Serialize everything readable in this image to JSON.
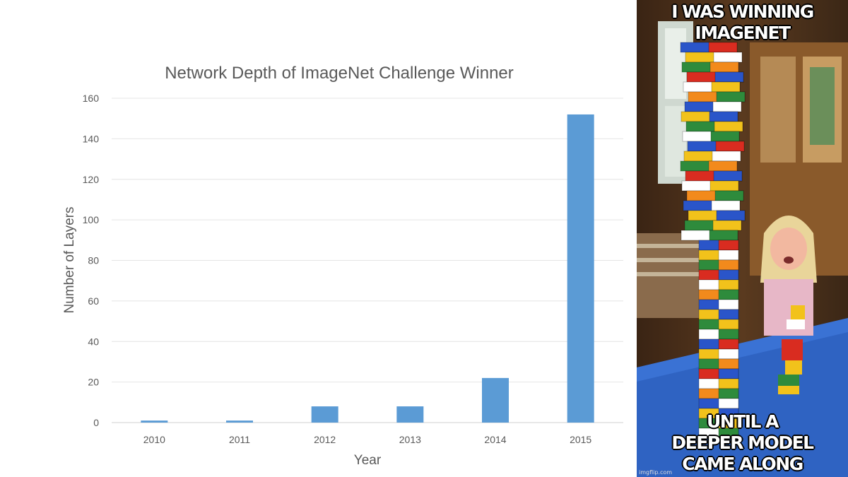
{
  "chart_data": {
    "type": "bar",
    "title": "Network Depth of ImageNet Challenge Winner",
    "xlabel": "Year",
    "ylabel": "Number of Layers",
    "categories": [
      "2010",
      "2011",
      "2012",
      "2013",
      "2014",
      "2015"
    ],
    "values": [
      1,
      1,
      8,
      8,
      22,
      152
    ],
    "ylim": [
      0,
      160
    ],
    "yticks": [
      0,
      20,
      40,
      60,
      80,
      100,
      120,
      140,
      160
    ],
    "grid": true,
    "legend": "none",
    "bar_color": "#5b9bd5"
  },
  "meme": {
    "top_text": "I WAS WINNING\nIMAGENET",
    "bottom_text": "UNTIL A\nDEEPER MODEL\nCAME ALONG",
    "watermark": "imgflip.com"
  }
}
